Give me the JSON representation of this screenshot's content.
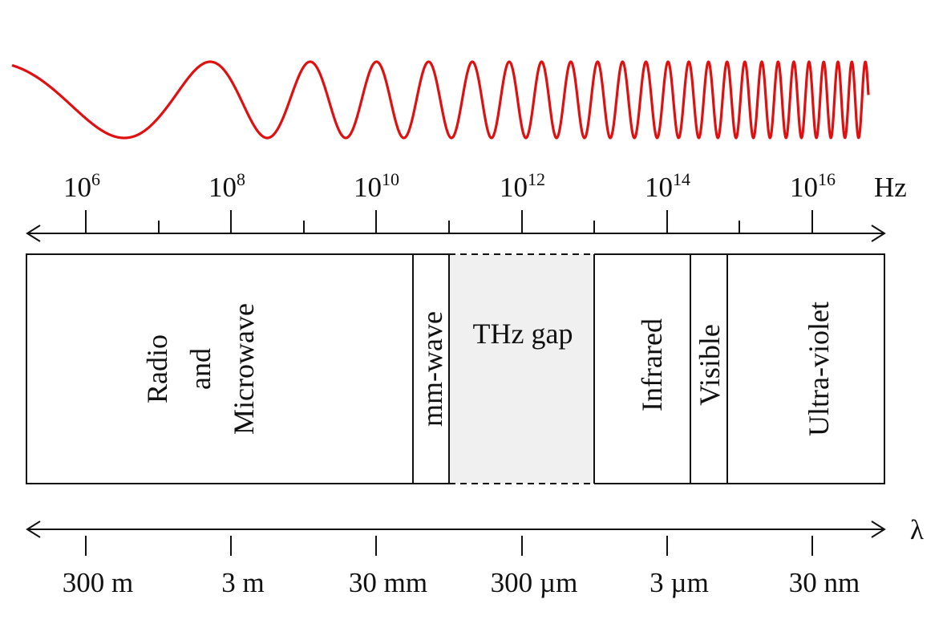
{
  "wave": {
    "color": "#e01010"
  },
  "frequency_axis": {
    "unit": "Hz",
    "labels": [
      {
        "base": "10",
        "exp": "6"
      },
      {
        "base": "10",
        "exp": "8"
      },
      {
        "base": "10",
        "exp": "10"
      },
      {
        "base": "10",
        "exp": "12"
      },
      {
        "base": "10",
        "exp": "14"
      },
      {
        "base": "10",
        "exp": "16"
      }
    ]
  },
  "bands": {
    "radio": [
      "Radio",
      "and",
      "Microwave"
    ],
    "mmwave": "mm-wave",
    "thz": "THz gap",
    "infrared": "Infrared",
    "visible": "Visible",
    "uv": "Ultra-violet",
    "thz_fill": "#f0f0f0"
  },
  "wavelength_axis": {
    "unit": "λ",
    "labels": [
      "300 m",
      "3 m",
      "30 mm",
      "300 µm",
      "3 µm",
      "30 nm"
    ]
  }
}
